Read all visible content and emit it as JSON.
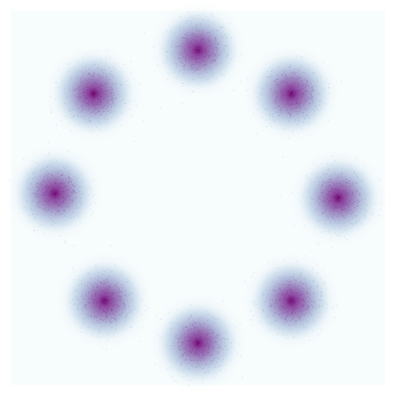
{
  "chart_data": {
    "type": "heatmap",
    "title": "",
    "xlabel": "",
    "ylabel": "",
    "xlim": [
      -1.2,
      1.2
    ],
    "ylim": [
      -1.2,
      1.2
    ],
    "grid": false,
    "legend": "none",
    "colormap": "BuPu",
    "colors": {
      "background": "#f7fcfd",
      "low": "#e0ecf4",
      "mid_low": "#9ebcda",
      "mid": "#8c96c6",
      "mid_high": "#8c6bb1",
      "high": "#88419d",
      "peak": "#6e016b"
    },
    "cluster_spread": 0.1,
    "clusters": [
      {
        "x": 0.0,
        "y": 0.95
      },
      {
        "x": 0.6,
        "y": 0.67
      },
      {
        "x": 0.9,
        "y": 0.0
      },
      {
        "x": 0.6,
        "y": -0.66
      },
      {
        "x": 0.0,
        "y": -0.93
      },
      {
        "x": -0.6,
        "y": -0.66
      },
      {
        "x": -0.92,
        "y": 0.03
      },
      {
        "x": -0.67,
        "y": 0.67
      }
    ]
  }
}
